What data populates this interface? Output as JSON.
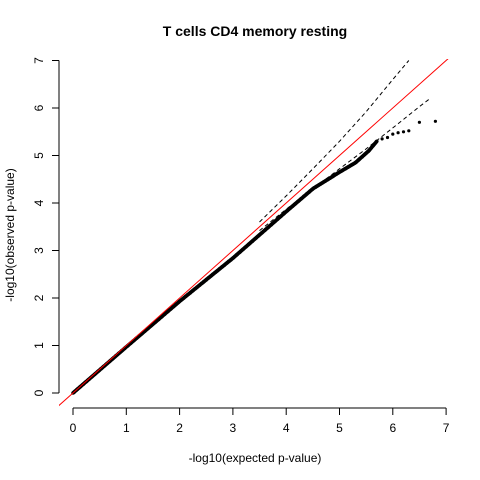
{
  "chart_data": {
    "type": "scatter",
    "title": "T cells CD4 memory resting",
    "xlabel": "-log10(expected p-value)",
    "ylabel": "-log10(observed p-value)",
    "xlim": [
      0,
      7
    ],
    "ylim": [
      0,
      7
    ],
    "x_ticks": [
      "0",
      "1",
      "2",
      "3",
      "4",
      "5",
      "6",
      "7"
    ],
    "y_ticks": [
      "0",
      "1",
      "2",
      "3",
      "4",
      "5",
      "6",
      "7"
    ],
    "reference_line": {
      "slope": 1,
      "intercept": 0,
      "color": "#ff0000"
    },
    "confidence_band": {
      "style": "dashed",
      "upper": [
        [
          3.5,
          3.6
        ],
        [
          4.0,
          4.15
        ],
        [
          4.5,
          4.72
        ],
        [
          5.0,
          5.3
        ],
        [
          5.5,
          5.92
        ],
        [
          6.0,
          6.6
        ],
        [
          6.3,
          7.0
        ]
      ],
      "lower": [
        [
          3.5,
          3.42
        ],
        [
          4.0,
          3.87
        ],
        [
          4.5,
          4.3
        ],
        [
          5.0,
          4.72
        ],
        [
          5.5,
          5.14
        ],
        [
          6.0,
          5.58
        ],
        [
          6.5,
          6.03
        ],
        [
          6.7,
          6.2
        ]
      ]
    },
    "series": [
      {
        "color": "#000000",
        "dense_trend": [
          [
            0,
            0
          ],
          [
            1,
            0.97
          ],
          [
            2,
            1.93
          ],
          [
            3,
            2.84
          ],
          [
            4,
            3.82
          ],
          [
            4.5,
            4.3
          ],
          [
            5.0,
            4.65
          ],
          [
            5.3,
            4.85
          ],
          [
            5.55,
            5.1
          ],
          [
            5.7,
            5.3
          ]
        ],
        "tail_points": [
          [
            5.8,
            5.35
          ],
          [
            5.9,
            5.38
          ],
          [
            6.0,
            5.45
          ],
          [
            6.1,
            5.48
          ],
          [
            6.2,
            5.5
          ],
          [
            6.3,
            5.52
          ],
          [
            6.5,
            5.7
          ],
          [
            6.8,
            5.72
          ]
        ]
      }
    ]
  }
}
